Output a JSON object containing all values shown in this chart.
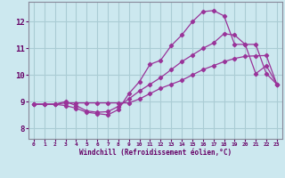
{
  "xlabel": "Windchill (Refroidissement éolien,°C)",
  "bg_color": "#cce8ef",
  "grid_color": "#aaccd4",
  "line_color": "#993399",
  "text_color": "#660066",
  "x_ticks": [
    0,
    1,
    2,
    3,
    4,
    5,
    6,
    7,
    8,
    9,
    10,
    11,
    12,
    13,
    14,
    15,
    16,
    17,
    18,
    19,
    20,
    21,
    22,
    23
  ],
  "y_ticks": [
    8,
    9,
    10,
    11,
    12
  ],
  "xlim": [
    -0.5,
    23.5
  ],
  "ylim": [
    7.6,
    12.75
  ],
  "line1_x": [
    0,
    1,
    2,
    3,
    4,
    5,
    6,
    7,
    8,
    9,
    10,
    11,
    12,
    13,
    14,
    15,
    16,
    17,
    18,
    19,
    20,
    21,
    22,
    23
  ],
  "line1_y": [
    8.9,
    8.9,
    8.9,
    8.85,
    8.75,
    8.6,
    8.55,
    8.5,
    8.7,
    9.3,
    9.75,
    10.4,
    10.55,
    11.1,
    11.5,
    12.0,
    12.38,
    12.42,
    12.22,
    11.15,
    11.15,
    10.05,
    10.35,
    9.65
  ],
  "line2_x": [
    0,
    1,
    2,
    3,
    4,
    5,
    6,
    7,
    8,
    9,
    10,
    11,
    12,
    13,
    14,
    15,
    16,
    17,
    18,
    19,
    20,
    21,
    22,
    23
  ],
  "line2_y": [
    8.9,
    8.9,
    8.9,
    9.0,
    8.85,
    8.65,
    8.6,
    8.62,
    8.82,
    9.1,
    9.4,
    9.65,
    9.9,
    10.2,
    10.5,
    10.75,
    11.0,
    11.2,
    11.55,
    11.5,
    11.15,
    11.15,
    10.05,
    9.65
  ],
  "line3_x": [
    0,
    1,
    2,
    3,
    4,
    5,
    6,
    7,
    8,
    9,
    10,
    11,
    12,
    13,
    14,
    15,
    16,
    17,
    18,
    19,
    20,
    21,
    22,
    23
  ],
  "line3_y": [
    8.9,
    8.9,
    8.9,
    8.95,
    8.95,
    8.95,
    8.95,
    8.95,
    8.95,
    8.95,
    9.1,
    9.3,
    9.5,
    9.65,
    9.8,
    10.0,
    10.2,
    10.35,
    10.5,
    10.62,
    10.7,
    10.72,
    10.73,
    9.65
  ]
}
